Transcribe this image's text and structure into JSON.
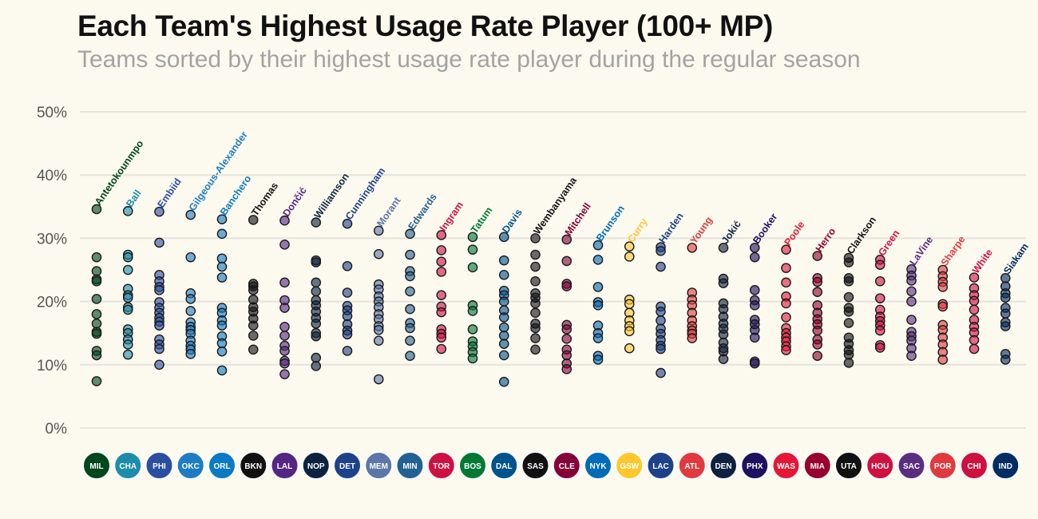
{
  "header": {
    "title": "Each Team's Highest Usage Rate Player (100+ MP)",
    "subtitle": "Teams sorted by their highest usage rate player during the regular season"
  },
  "chart_data": {
    "type": "scatter",
    "title": "Each Team's Highest Usage Rate Player (100+ MP)",
    "subtitle": "Teams sorted by their highest usage rate player during the regular season",
    "ylim": [
      0,
      50
    ],
    "yticks": [
      0,
      10,
      20,
      30,
      40,
      50
    ],
    "ytick_labels": [
      "0%",
      "10%",
      "20%",
      "30%",
      "40%",
      "50%"
    ],
    "grid": true,
    "series": [
      {
        "team": "MIL",
        "label": "Antetokounmpo",
        "color": "#00471b",
        "max": 34.6,
        "values": [
          34.6,
          27.0,
          24.8,
          23.5,
          23.2,
          20.4,
          18.0,
          16.5,
          15.2,
          14.9,
          12.2,
          11.5,
          7.4
        ]
      },
      {
        "team": "CHA",
        "label": "Ball",
        "color": "#1d8cab",
        "max": 34.3,
        "values": [
          34.3,
          27.4,
          27.0,
          25.0,
          22.0,
          21.0,
          20.6,
          19.1,
          18.7,
          15.6,
          15.0,
          14.0,
          13.2,
          11.6
        ]
      },
      {
        "team": "PHI",
        "label": "Embiid",
        "color": "#2a4fa0",
        "max": 34.2,
        "values": [
          34.2,
          29.3,
          24.2,
          23.2,
          22.3,
          21.8,
          19.9,
          19.0,
          18.2,
          17.4,
          16.8,
          16.2,
          14.0,
          13.2,
          12.5,
          10.0
        ]
      },
      {
        "team": "OKC",
        "label": "Gilgeous-Alexander",
        "color": "#1e7cc4",
        "max": 33.7,
        "values": [
          33.7,
          27.0,
          21.3,
          20.4,
          18.5,
          16.7,
          16.0,
          15.5,
          14.9,
          13.8,
          13.0,
          12.4,
          11.7
        ]
      },
      {
        "team": "ORL",
        "label": "Banchero",
        "color": "#0b7ac5",
        "max": 33.0,
        "values": [
          33.0,
          30.7,
          26.8,
          25.5,
          23.8,
          19.0,
          18.2,
          17.0,
          16.2,
          14.5,
          13.4,
          12.1,
          9.1
        ]
      },
      {
        "team": "BKN",
        "label": "Thomas",
        "color": "#111111",
        "max": 32.9,
        "values": [
          32.9,
          22.8,
          22.4,
          21.8,
          20.3,
          19.1,
          18.4,
          17.3,
          16.2,
          14.6,
          12.4
        ]
      },
      {
        "team": "LAL",
        "label": "Dončić",
        "color": "#552583",
        "max": 32.8,
        "values": [
          32.8,
          29.0,
          23.0,
          20.2,
          19.0,
          16.0,
          14.6,
          13.0,
          12.2,
          10.6,
          10.2,
          8.5
        ]
      },
      {
        "team": "NOP",
        "label": "Williamson",
        "color": "#0c2340",
        "max": 32.5,
        "values": [
          32.5,
          26.5,
          26.2,
          23.0,
          21.6,
          20.2,
          19.4,
          18.4,
          17.4,
          16.5,
          15.0,
          14.5,
          11.1,
          9.8
        ]
      },
      {
        "team": "DET",
        "label": "Cunningham",
        "color": "#1d428a",
        "max": 32.3,
        "values": [
          32.3,
          25.6,
          21.4,
          19.3,
          18.6,
          17.7,
          16.4,
          15.4,
          14.8,
          12.2
        ]
      },
      {
        "team": "MEM",
        "label": "Morant",
        "color": "#5d76a9",
        "max": 31.2,
        "values": [
          31.2,
          27.5,
          22.7,
          21.9,
          20.8,
          20.0,
          19.1,
          18.0,
          17.2,
          16.1,
          15.5,
          13.8,
          7.7
        ]
      },
      {
        "team": "MIN",
        "label": "Edwards",
        "color": "#236192",
        "max": 30.7,
        "values": [
          30.7,
          27.4,
          24.8,
          24.0,
          21.6,
          18.8,
          16.6,
          15.8,
          13.8,
          11.4
        ]
      },
      {
        "team": "TOR",
        "label": "Ingram",
        "color": "#ce1141",
        "max": 30.5,
        "values": [
          30.5,
          28.1,
          26.3,
          24.7,
          21.0,
          19.2,
          18.3,
          15.6,
          14.9,
          14.3,
          12.5
        ]
      },
      {
        "team": "BOS",
        "label": "Tatum",
        "color": "#007a33",
        "max": 30.2,
        "values": [
          30.2,
          28.2,
          25.4,
          19.4,
          18.5,
          15.6,
          13.7,
          12.9,
          12.0,
          11.0
        ]
      },
      {
        "team": "DAL",
        "label": "Davis",
        "color": "#00538c",
        "max": 30.2,
        "values": [
          30.2,
          26.5,
          24.2,
          21.7,
          21.0,
          20.0,
          18.6,
          17.5,
          15.9,
          14.6,
          13.3,
          11.5,
          7.3
        ]
      },
      {
        "team": "SAS",
        "label": "Wembanyama",
        "color": "#111111",
        "max": 30.0,
        "values": [
          30.0,
          27.4,
          25.5,
          23.2,
          21.3,
          20.6,
          19.7,
          18.2,
          16.5,
          15.8,
          14.2,
          12.4
        ]
      },
      {
        "team": "CLE",
        "label": "Mitchell",
        "color": "#860038",
        "max": 29.8,
        "values": [
          29.8,
          26.4,
          22.8,
          22.4,
          16.3,
          15.6,
          14.1,
          12.4,
          11.5,
          10.2,
          9.3
        ]
      },
      {
        "team": "NYK",
        "label": "Brunson",
        "color": "#006bb6",
        "max": 28.9,
        "values": [
          28.9,
          26.6,
          22.3,
          19.9,
          19.4,
          16.2,
          15.0,
          14.2,
          11.4,
          10.8
        ]
      },
      {
        "team": "GSW",
        "label": "Curry",
        "color": "#ffc72c",
        "max": 28.7,
        "values": [
          28.7,
          27.1,
          20.3,
          19.6,
          18.2,
          17.0,
          16.1,
          15.3,
          12.6
        ]
      },
      {
        "team": "LAC",
        "label": "Harden",
        "color": "#1d428a",
        "max": 28.6,
        "values": [
          28.6,
          28.0,
          25.5,
          19.2,
          18.4,
          17.0,
          15.7,
          14.9,
          13.9,
          13.0,
          12.5,
          8.7
        ]
      },
      {
        "team": "ATL",
        "label": "Young",
        "color": "#e03a3e",
        "max": 28.5,
        "values": [
          28.5,
          21.4,
          20.3,
          19.4,
          18.2,
          17.0,
          16.1,
          15.4,
          14.9,
          14.2
        ]
      },
      {
        "team": "DEN",
        "label": "Jokić",
        "color": "#0e2240",
        "max": 28.5,
        "values": [
          28.5,
          23.6,
          22.9,
          19.7,
          18.8,
          17.6,
          16.5,
          15.7,
          14.8,
          13.5,
          12.6,
          12.1,
          10.9
        ]
      },
      {
        "team": "PHX",
        "label": "Booker",
        "color": "#1d1160",
        "max": 28.5,
        "values": [
          28.5,
          27.0,
          21.8,
          20.2,
          19.4,
          17.1,
          16.4,
          15.5,
          14.3,
          10.5,
          10.2
        ]
      },
      {
        "team": "WAS",
        "label": "Poole",
        "color": "#e31837",
        "max": 28.2,
        "values": [
          28.2,
          25.3,
          23.0,
          20.8,
          19.7,
          17.5,
          15.8,
          15.0,
          14.3,
          13.7,
          12.9,
          12.3
        ]
      },
      {
        "team": "MIA",
        "label": "Herro",
        "color": "#98002e",
        "max": 27.2,
        "values": [
          27.2,
          23.7,
          23.1,
          21.5,
          19.4,
          18.2,
          17.2,
          16.4,
          15.4,
          14.0,
          13.2,
          11.4
        ]
      },
      {
        "team": "UTA",
        "label": "Clarkson",
        "color": "#111111",
        "max": 26.9,
        "values": [
          26.9,
          26.2,
          23.7,
          23.2,
          20.7,
          19.0,
          18.4,
          16.6,
          14.3,
          13.3,
          12.3,
          11.6,
          10.3
        ]
      },
      {
        "team": "HOU",
        "label": "Green",
        "color": "#ce1141",
        "max": 26.6,
        "values": [
          26.6,
          25.8,
          23.2,
          20.5,
          18.7,
          17.6,
          16.9,
          16.2,
          15.4,
          13.1,
          12.7
        ]
      },
      {
        "team": "SAC",
        "label": "LaVine",
        "color": "#5a2d81",
        "max": 25.1,
        "values": [
          25.1,
          24.1,
          23.3,
          21.6,
          20.0,
          17.1,
          15.2,
          14.5,
          13.8,
          12.6,
          11.4
        ]
      },
      {
        "team": "POR",
        "label": "Sharpe",
        "color": "#e03a3e",
        "max": 25.0,
        "values": [
          25.0,
          24.0,
          23.1,
          22.3,
          19.6,
          19.2,
          16.3,
          15.5,
          14.3,
          13.2,
          12.0,
          10.8
        ]
      },
      {
        "team": "CHI",
        "label": "White",
        "color": "#ce1141",
        "max": 23.8,
        "values": [
          23.8,
          22.1,
          21.0,
          20.1,
          18.7,
          17.1,
          16.0,
          15.1,
          13.9,
          12.5
        ]
      },
      {
        "team": "IND",
        "label": "Siakam",
        "color": "#002d62",
        "max": 23.7,
        "values": [
          23.7,
          22.4,
          21.3,
          20.6,
          19.0,
          18.1,
          16.7,
          16.1,
          11.7,
          10.8
        ]
      }
    ]
  }
}
